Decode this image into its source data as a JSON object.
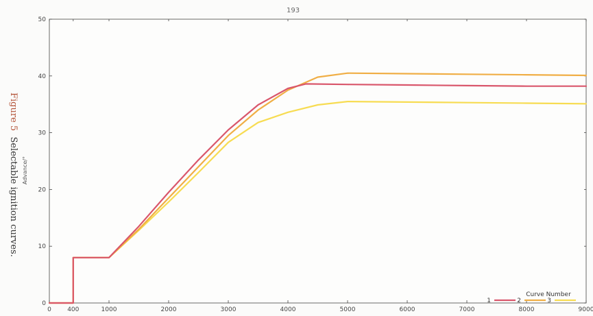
{
  "page": {
    "number": "193"
  },
  "caption": {
    "label": "Figure 5",
    "text": "Selectable ignition curves."
  },
  "chart_data": {
    "type": "line",
    "title": "",
    "xlabel": "",
    "ylabel": "Advance/°",
    "xlim": [
      0,
      9000
    ],
    "ylim": [
      0,
      50
    ],
    "x_ticks": [
      0,
      400,
      1000,
      2000,
      3000,
      4000,
      5000,
      6000,
      7000,
      8000,
      9000
    ],
    "y_ticks": [
      0,
      10,
      20,
      30,
      40,
      50
    ],
    "grid": false,
    "legend": {
      "title": "Curve Number",
      "placement": "bottom-right"
    },
    "series": [
      {
        "name": "1",
        "color": "#d9566b",
        "points": [
          [
            0,
            0
          ],
          [
            400,
            0
          ],
          [
            400,
            8
          ],
          [
            1000,
            8
          ],
          [
            1500,
            13.5
          ],
          [
            2000,
            19.5
          ],
          [
            2500,
            25.2
          ],
          [
            3000,
            30.5
          ],
          [
            3500,
            34.9
          ],
          [
            4000,
            37.8
          ],
          [
            4300,
            38.6
          ],
          [
            5000,
            38.5
          ],
          [
            6000,
            38.4
          ],
          [
            7000,
            38.3
          ],
          [
            8000,
            38.2
          ],
          [
            9000,
            38.2
          ]
        ]
      },
      {
        "name": "2",
        "color": "#f0ae45",
        "points": [
          [
            0,
            0
          ],
          [
            400,
            0
          ],
          [
            400,
            8
          ],
          [
            1000,
            8
          ],
          [
            1500,
            13.0
          ],
          [
            2000,
            18.5
          ],
          [
            2500,
            24.0
          ],
          [
            3000,
            29.5
          ],
          [
            3500,
            34.0
          ],
          [
            4000,
            37.5
          ],
          [
            4500,
            39.8
          ],
          [
            5000,
            40.5
          ],
          [
            6000,
            40.4
          ],
          [
            7000,
            40.3
          ],
          [
            8000,
            40.2
          ],
          [
            9000,
            40.1
          ]
        ]
      },
      {
        "name": "3",
        "color": "#f7dc52",
        "points": [
          [
            0,
            0
          ],
          [
            400,
            0
          ],
          [
            400,
            8
          ],
          [
            1000,
            8
          ],
          [
            1500,
            12.8
          ],
          [
            2000,
            17.8
          ],
          [
            2500,
            23.0
          ],
          [
            3000,
            28.3
          ],
          [
            3500,
            31.8
          ],
          [
            4000,
            33.6
          ],
          [
            4500,
            34.9
          ],
          [
            5000,
            35.5
          ],
          [
            6000,
            35.4
          ],
          [
            7000,
            35.3
          ],
          [
            8000,
            35.2
          ],
          [
            9000,
            35.1
          ]
        ]
      }
    ]
  }
}
